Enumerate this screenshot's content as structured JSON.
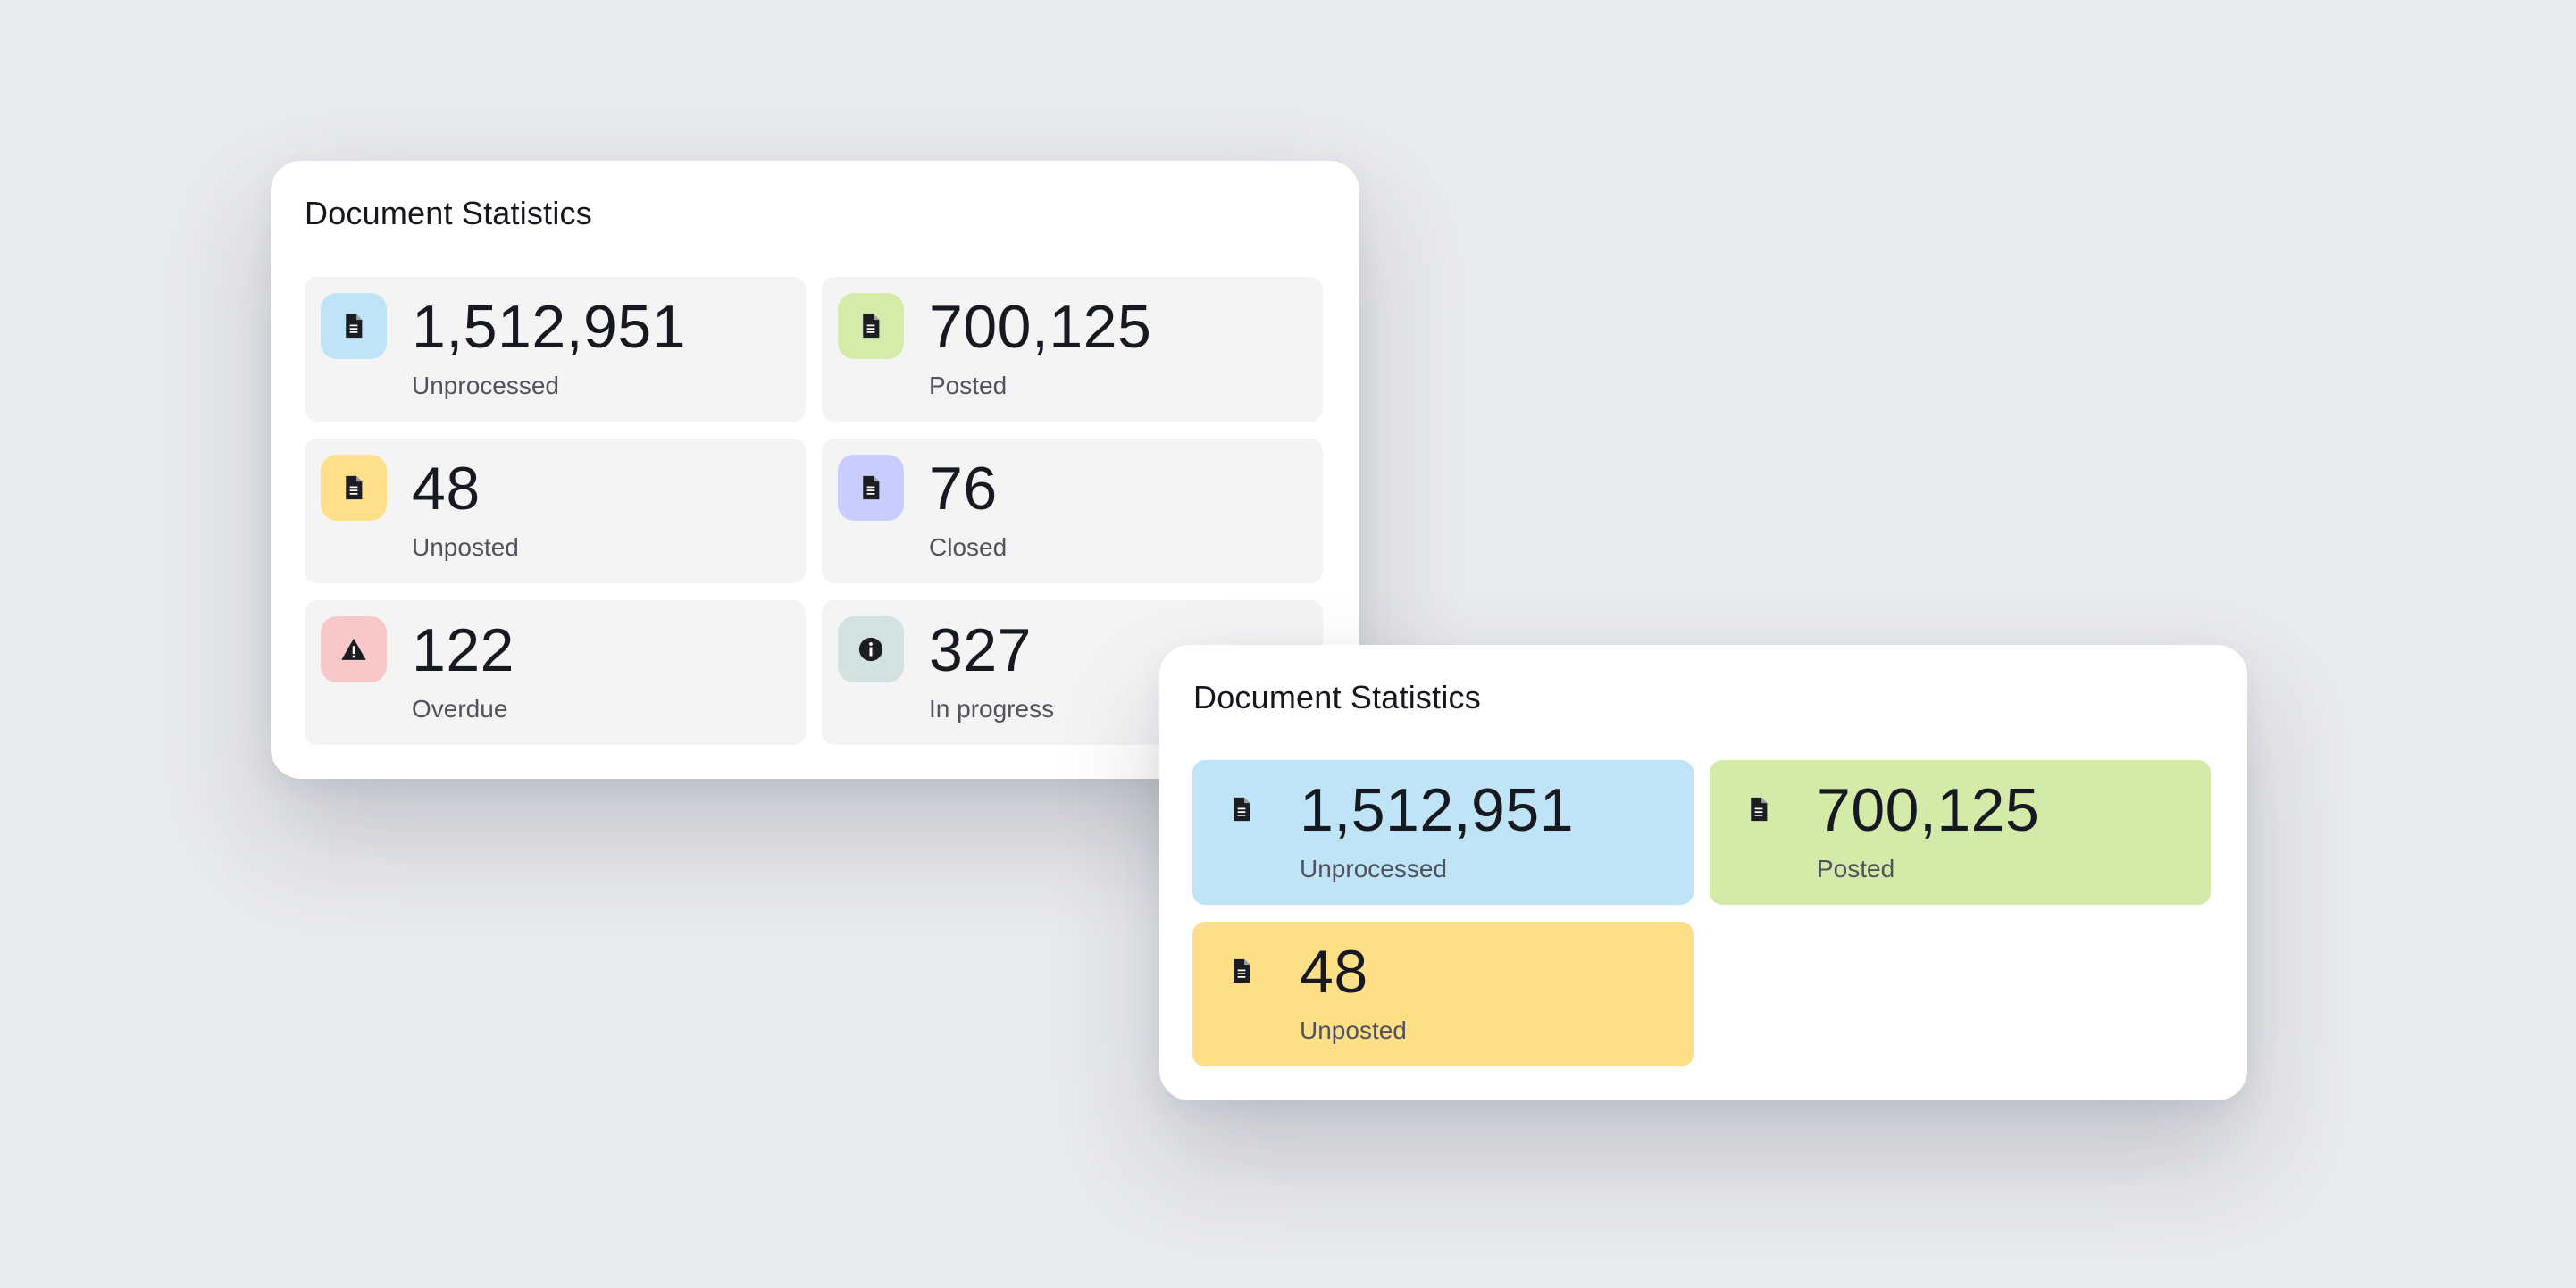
{
  "panel_a": {
    "title": "Document Statistics",
    "tiles": [
      {
        "value": "1,512,951",
        "label": "Unprocessed",
        "icon": "document-icon",
        "color": "#bfe4f7"
      },
      {
        "value": "700,125",
        "label": "Posted",
        "icon": "document-icon",
        "color": "#d4ebaa"
      },
      {
        "value": "48",
        "label": "Unposted",
        "icon": "document-icon",
        "color": "#fde089"
      },
      {
        "value": "76",
        "label": "Closed",
        "icon": "document-icon",
        "color": "#c8ccff"
      },
      {
        "value": "122",
        "label": "Overdue",
        "icon": "warning-icon",
        "color": "#f8c8c8"
      },
      {
        "value": "327",
        "label": "In progress",
        "icon": "info-icon",
        "color": "#d3e1e1"
      }
    ]
  },
  "panel_b": {
    "title": "Document Statistics",
    "tiles": [
      {
        "value": "1,512,951",
        "label": "Unprocessed",
        "icon": "document-icon",
        "color": "#bfe3f7"
      },
      {
        "value": "700,125",
        "label": "Posted",
        "icon": "document-icon",
        "color": "#d4eaa8"
      },
      {
        "value": "48",
        "label": "Unposted",
        "icon": "document-icon",
        "color": "#fddf88"
      }
    ]
  }
}
